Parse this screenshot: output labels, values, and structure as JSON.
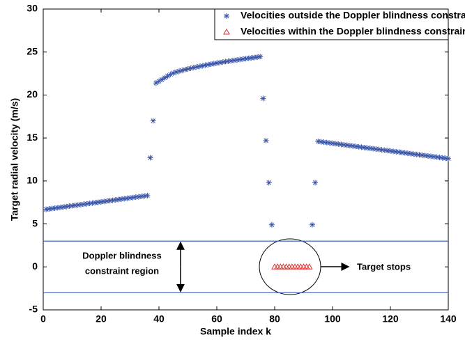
{
  "chart_data": {
    "type": "scatter",
    "xlabel": "Sample index k",
    "ylabel": "Target radial velocity (m/s)",
    "xlim": [
      0,
      140
    ],
    "xticks": [
      0,
      20,
      40,
      60,
      80,
      100,
      120,
      140
    ],
    "ylim": [
      -5,
      30
    ],
    "yticks": [
      -5,
      0,
      5,
      10,
      15,
      20,
      25,
      30
    ],
    "grid": false,
    "legend": "top-right",
    "reference_lines": [
      3,
      -3
    ],
    "reference_color": "#4060b0",
    "annotations": [
      "Doppler blindness",
      "constraint region",
      "Target stops"
    ],
    "series": [
      {
        "name": "Velocities outside the Doppler blindness constraint region",
        "color": "#3a55a8",
        "marker": "star",
        "x": [
          1,
          2,
          3,
          4,
          5,
          6,
          7,
          8,
          9,
          10,
          11,
          12,
          13,
          14,
          15,
          16,
          17,
          18,
          19,
          20,
          21,
          22,
          23,
          24,
          25,
          26,
          27,
          28,
          29,
          30,
          31,
          32,
          33,
          34,
          35,
          36,
          37,
          38,
          39,
          40,
          41,
          42,
          43,
          44,
          45,
          46,
          47,
          48,
          49,
          50,
          51,
          52,
          53,
          54,
          55,
          56,
          57,
          58,
          59,
          60,
          61,
          62,
          63,
          64,
          65,
          66,
          67,
          68,
          69,
          70,
          71,
          72,
          73,
          74,
          75,
          76,
          77,
          78,
          79,
          93,
          94,
          95,
          96,
          97,
          98,
          99,
          100,
          101,
          102,
          103,
          104,
          105,
          106,
          107,
          108,
          109,
          110,
          111,
          112,
          113,
          114,
          115,
          116,
          117,
          118,
          119,
          120,
          121,
          122,
          123,
          124,
          125,
          126,
          127,
          128,
          129,
          130,
          131,
          132,
          133,
          134,
          135,
          136,
          137,
          138,
          139,
          140
        ],
        "values": [
          6.7,
          6.75,
          6.79,
          6.84,
          6.88,
          6.93,
          6.97,
          7.02,
          7.07,
          7.11,
          7.16,
          7.2,
          7.25,
          7.29,
          7.34,
          7.39,
          7.43,
          7.48,
          7.52,
          7.57,
          7.61,
          7.66,
          7.71,
          7.75,
          7.8,
          7.84,
          7.89,
          7.93,
          7.98,
          8.03,
          8.07,
          8.12,
          8.16,
          8.21,
          8.25,
          8.3,
          12.7,
          17.0,
          21.4,
          21.6,
          21.8,
          22.0,
          22.2,
          22.4,
          22.56,
          22.67,
          22.77,
          22.86,
          22.95,
          23.03,
          23.11,
          23.19,
          23.26,
          23.33,
          23.4,
          23.47,
          23.53,
          23.59,
          23.65,
          23.71,
          23.77,
          23.82,
          23.88,
          23.93,
          23.98,
          24.03,
          24.08,
          24.13,
          24.18,
          24.23,
          24.28,
          24.32,
          24.37,
          24.41,
          24.46,
          19.6,
          14.7,
          9.8,
          4.9,
          4.9,
          9.8,
          14.6,
          14.56,
          14.51,
          14.47,
          14.42,
          14.38,
          14.33,
          14.29,
          14.24,
          14.2,
          14.16,
          14.11,
          14.07,
          14.02,
          13.98,
          13.93,
          13.89,
          13.84,
          13.8,
          13.76,
          13.71,
          13.67,
          13.62,
          13.58,
          13.53,
          13.49,
          13.44,
          13.4,
          13.36,
          13.31,
          13.27,
          13.22,
          13.18,
          13.13,
          13.09,
          13.04,
          13.0,
          12.96,
          12.91,
          12.87,
          12.82,
          12.78,
          12.73,
          12.69,
          12.64,
          12.6
        ]
      },
      {
        "name": "Velocities within the Doppler blindness constraint region",
        "color": "#e03030",
        "marker": "triangle",
        "x": [
          80,
          81,
          82,
          83,
          84,
          85,
          86,
          87,
          88,
          89,
          90,
          91,
          92
        ],
        "values": [
          0,
          0,
          0,
          0,
          0,
          0,
          0,
          0,
          0,
          0,
          0,
          0,
          0
        ]
      }
    ]
  }
}
